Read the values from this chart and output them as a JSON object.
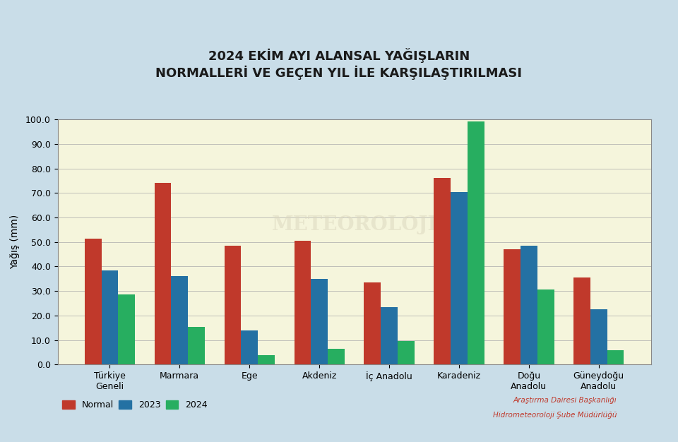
{
  "title_line1": "2024 EKİM AYI ALANSAL YAĞIŞLARIN",
  "title_line2": "NORMALLERİ VE GEÇEN YIL İLE KARŞILAŞTIRILMASI",
  "categories": [
    "Türkiye\nGeneli",
    "Marmara",
    "Ege",
    "Akdeniz",
    "İç Anadolu",
    "Karadeniz",
    "Doğu\nAnadolu",
    "Güneydoğu\nAnadolu"
  ],
  "normal": [
    51.5,
    74.0,
    48.5,
    50.5,
    33.5,
    76.0,
    47.0,
    35.5
  ],
  "y2023": [
    38.5,
    36.0,
    14.0,
    35.0,
    23.5,
    70.5,
    48.5,
    22.5
  ],
  "y2024": [
    28.5,
    15.5,
    4.0,
    6.5,
    9.5,
    99.0,
    30.5,
    6.0
  ],
  "color_normal": "#c0392b",
  "color_2023": "#2471a3",
  "color_2024": "#27ae60",
  "ylabel": "Yağış (mm)",
  "ylim": [
    0.0,
    100.0
  ],
  "yticks": [
    0.0,
    10.0,
    20.0,
    30.0,
    40.0,
    50.0,
    60.0,
    70.0,
    80.0,
    90.0,
    100.0
  ],
  "legend_normal": "Normal",
  "legend_2023": "2023",
  "legend_2024": "2024",
  "bg_outer": "#c9dde8",
  "bg_plot": "#f5f5dc",
  "attribution_line1": "Araştırma Dairesi Başkanlığı",
  "attribution_line2": "Hidrometeoroloji Şube Müdürlüğü",
  "attribution_color": "#c0392b",
  "title_fontsize": 13,
  "bar_width": 0.24
}
